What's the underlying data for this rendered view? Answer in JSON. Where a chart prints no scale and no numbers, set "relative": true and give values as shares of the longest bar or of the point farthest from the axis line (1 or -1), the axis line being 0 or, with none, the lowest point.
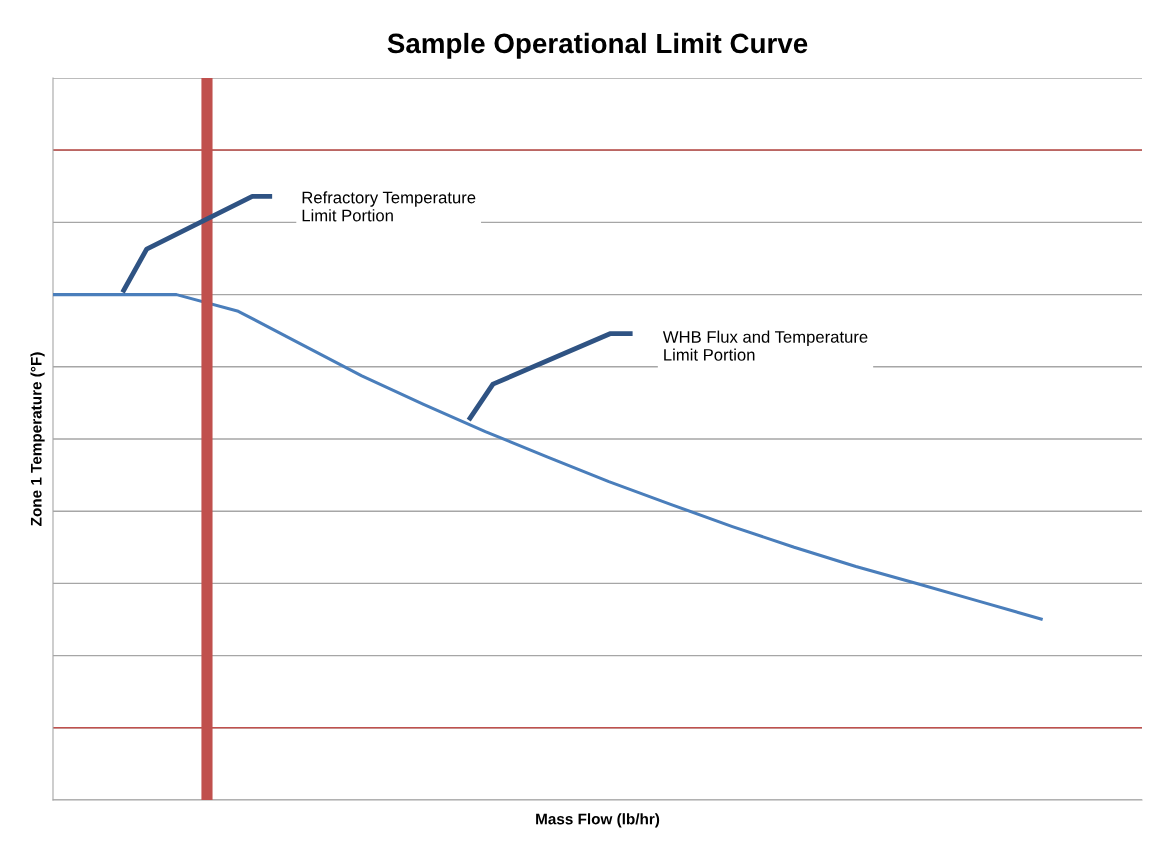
{
  "chart_data": {
    "type": "line",
    "title": "Sample Operational Limit Curve",
    "xlabel": "Mass Flow (lb/hr)",
    "ylabel": "Zone 1 Temperature (°F)",
    "relative": true,
    "grid": "y",
    "marker": "none",
    "line_style": "solid",
    "categories": [
      null,
      null,
      null,
      null,
      null,
      null,
      null,
      null,
      null,
      null,
      null,
      null,
      null,
      null,
      null,
      null,
      null
    ],
    "series": [
      {
        "color": "#4a7ebb",
        "values": [
          1,
          1,
          1,
          0.967,
          0.903,
          0.839,
          0.783,
          0.729,
          0.679,
          0.63,
          0.585,
          0.541,
          0.5,
          0.462,
          0.428,
          0.393,
          0.358
        ]
      }
    ],
    "ref_lines": [
      {
        "axis": "y",
        "value": 0.143,
        "color": "#c0504d"
      },
      {
        "axis": "y",
        "value": 1.286,
        "color": "#c0504d"
      }
    ],
    "annotations": [
      "Refractory Temperature\nLimit Portion",
      "WHB Flux and Temperature\nLimit Portion"
    ]
  }
}
